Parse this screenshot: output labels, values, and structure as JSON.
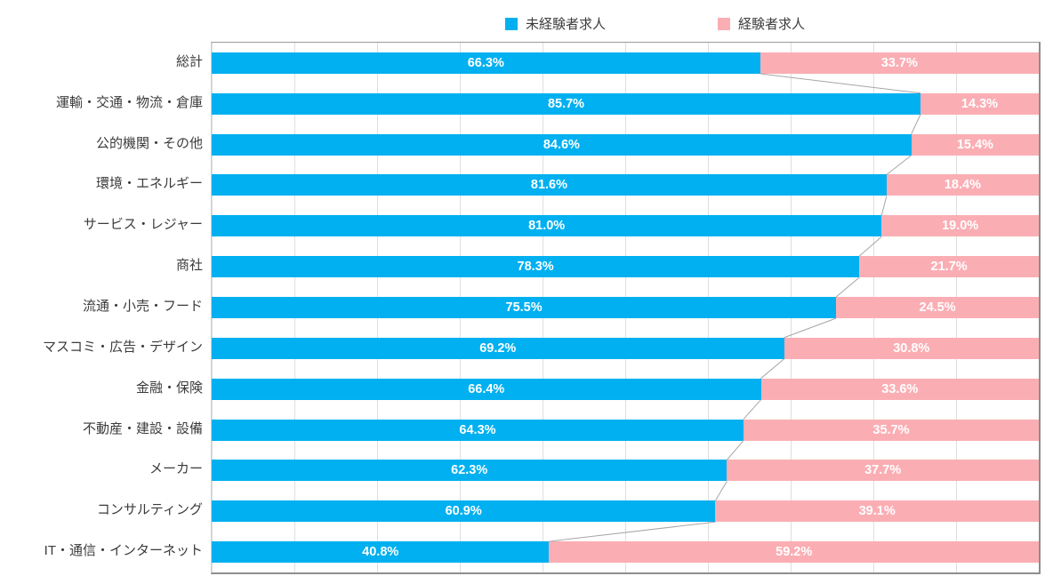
{
  "legend": {
    "items": [
      {
        "label": "未経験者求人",
        "color": "#00B0F0"
      },
      {
        "label": "経験者求人",
        "color": "#FAAEB4"
      }
    ],
    "position": "top"
  },
  "chart_data": {
    "type": "bar",
    "subtype": "stacked-100-horizontal",
    "title": "",
    "xlabel": "",
    "ylabel": "",
    "xlim": [
      0,
      100
    ],
    "gridline_interval_percent": 10,
    "grid": "vertical-only",
    "connector_lines": true,
    "connector_color": "#A6A6A6",
    "gridline_color": "#DEDEDE",
    "categories": [
      "総計",
      "運輸・交通・物流・倉庫",
      "公的機関・その他",
      "環境・エネルギー",
      "サービス・レジャー",
      "商社",
      "流通・小売・フード",
      "マスコミ・広告・デザイン",
      "金融・保険",
      "不動産・建設・設備",
      "メーカー",
      "コンサルティング",
      "IT・通信・インターネット"
    ],
    "series": [
      {
        "name": "未経験者求人",
        "color": "#00B0F0",
        "values": [
          66.3,
          85.7,
          84.6,
          81.6,
          81.0,
          78.3,
          75.5,
          69.2,
          66.4,
          64.3,
          62.3,
          60.9,
          40.8
        ],
        "labels": [
          "66.3%",
          "85.7%",
          "84.6%",
          "81.6%",
          "81.0%",
          "78.3%",
          "75.5%",
          "69.2%",
          "66.4%",
          "64.3%",
          "62.3%",
          "60.9%",
          "40.8%"
        ]
      },
      {
        "name": "経験者求人",
        "color": "#FAAEB4",
        "values": [
          33.7,
          14.3,
          15.4,
          18.4,
          19.0,
          21.7,
          24.5,
          30.8,
          33.6,
          35.7,
          37.7,
          39.1,
          59.2
        ],
        "labels": [
          "33.7%",
          "14.3%",
          "15.4%",
          "18.4%",
          "19.0%",
          "21.7%",
          "24.5%",
          "30.8%",
          "33.6%",
          "35.7%",
          "37.7%",
          "39.1%",
          "59.2%"
        ]
      }
    ]
  },
  "colors": {
    "value_label_text": "#FFFFFF",
    "category_label_text": "#3B3B3B",
    "legend_text": "#3D3D3D",
    "plot_border": "#8E8E8E",
    "background": "#FFFFFF"
  }
}
